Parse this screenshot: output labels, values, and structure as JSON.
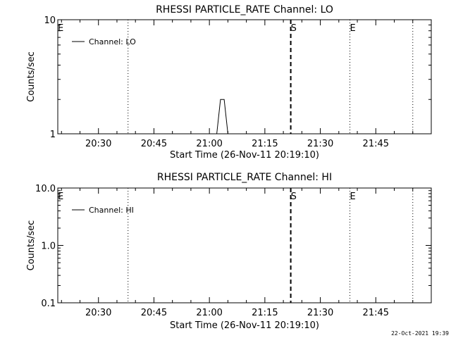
{
  "chart_data": [
    {
      "type": "line",
      "title": "RHESSI PARTICLE_RATE Channel: LO",
      "xlabel": "Start Time (26-Nov-11 20:19:10)",
      "ylabel": "Counts/sec",
      "scale": "log",
      "x_range_minutes": [
        "20:19",
        "22:00"
      ],
      "ylim": [
        1,
        10
      ],
      "y_ticks": [
        {
          "value": 1,
          "label": "1"
        },
        {
          "value": 10,
          "label": "10"
        }
      ],
      "x_ticks": [
        {
          "time": "20:30",
          "label": "20:30"
        },
        {
          "time": "20:45",
          "label": "20:45"
        },
        {
          "time": "21:00",
          "label": "21:00"
        },
        {
          "time": "21:15",
          "label": "21:15"
        },
        {
          "time": "21:30",
          "label": "21:30"
        },
        {
          "time": "21:45",
          "label": "21:45"
        }
      ],
      "legend": {
        "label": "Channel: LO",
        "placement": "top-left"
      },
      "series": [
        {
          "name": "Channel: LO",
          "points": [
            [
              "21:02",
              1
            ],
            [
              "21:03",
              2
            ],
            [
              "21:04",
              2
            ],
            [
              "21:05",
              1
            ]
          ]
        }
      ],
      "markers": [
        {
          "time": "20:19",
          "label": "E",
          "style": "dotted"
        },
        {
          "time": "20:38",
          "label": "",
          "style": "dotted"
        },
        {
          "time": "21:22",
          "label": "S",
          "style": "dashed"
        },
        {
          "time": "21:38",
          "label": "E",
          "style": "dotted"
        },
        {
          "time": "21:55",
          "label": "",
          "style": "dotted"
        }
      ]
    },
    {
      "type": "line",
      "title": "RHESSI PARTICLE_RATE Channel: HI",
      "xlabel": "Start Time (26-Nov-11 20:19:10)",
      "ylabel": "Counts/sec",
      "scale": "log",
      "x_range_minutes": [
        "20:19",
        "22:00"
      ],
      "ylim": [
        0.1,
        10
      ],
      "y_ticks": [
        {
          "value": 0.1,
          "label": "0.1"
        },
        {
          "value": 1,
          "label": "1.0"
        },
        {
          "value": 10,
          "label": "10.0"
        }
      ],
      "x_ticks": [
        {
          "time": "20:30",
          "label": "20:30"
        },
        {
          "time": "20:45",
          "label": "20:45"
        },
        {
          "time": "21:00",
          "label": "21:00"
        },
        {
          "time": "21:15",
          "label": "21:15"
        },
        {
          "time": "21:30",
          "label": "21:30"
        },
        {
          "time": "21:45",
          "label": "21:45"
        }
      ],
      "legend": {
        "label": "Channel: HI",
        "placement": "top-left"
      },
      "series": [
        {
          "name": "Channel: HI",
          "points": []
        }
      ],
      "markers": [
        {
          "time": "20:19",
          "label": "E",
          "style": "dotted"
        },
        {
          "time": "20:38",
          "label": "",
          "style": "dotted"
        },
        {
          "time": "21:22",
          "label": "S",
          "style": "dashed"
        },
        {
          "time": "21:38",
          "label": "E",
          "style": "dotted"
        },
        {
          "time": "21:55",
          "label": "",
          "style": "dotted"
        }
      ]
    }
  ],
  "footer_timestamp": "22-Oct-2021 19:39"
}
